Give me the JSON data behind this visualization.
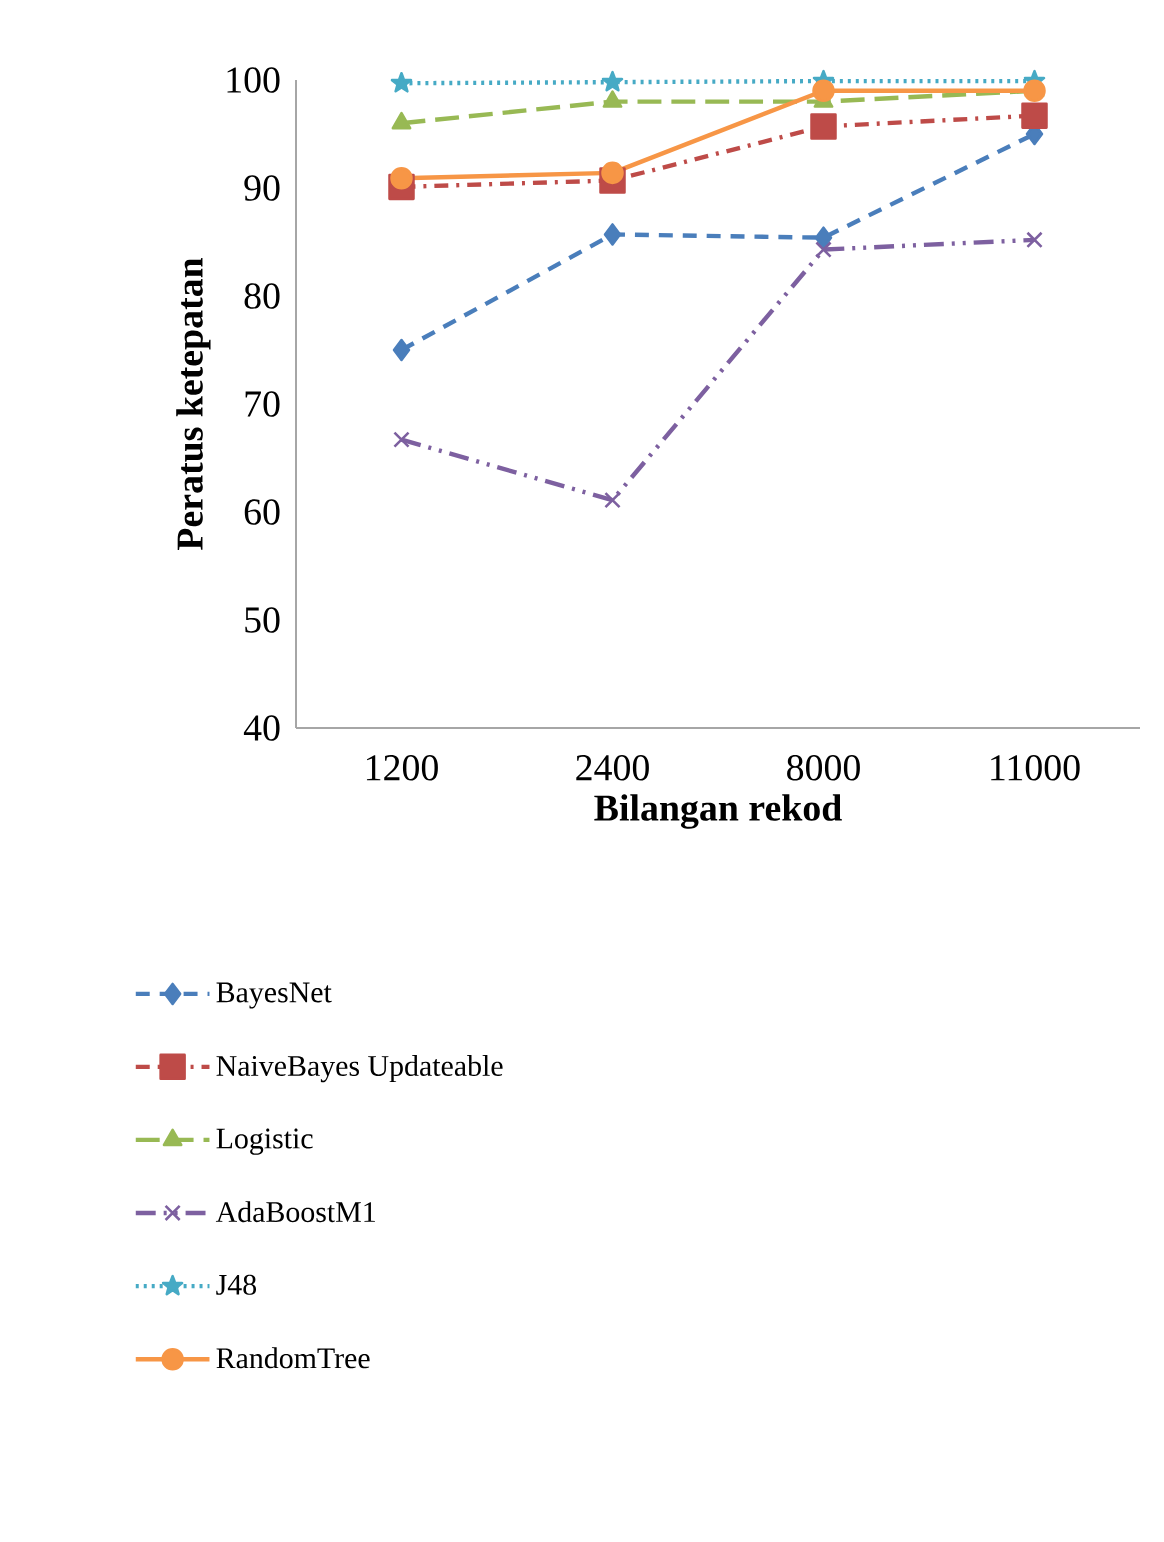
{
  "chart_data": {
    "type": "line",
    "xlabel": "Bilangan rekod",
    "ylabel": "Peratus ketepatan",
    "categories": [
      "1200",
      "2400",
      "8000",
      "11000"
    ],
    "ylim": [
      40,
      100
    ],
    "yticks": [
      40,
      50,
      60,
      70,
      80,
      90,
      100
    ],
    "legend": "bottom",
    "series": [
      {
        "name": "BayesNet",
        "color": "#4a7ebb",
        "marker": "diamond",
        "line_style": "dashed",
        "values": [
          75,
          85.7,
          85.4,
          95
        ]
      },
      {
        "name": "NaiveBayes Updateable",
        "color": "#be4b48",
        "marker": "square",
        "line_style": "dashdot",
        "values": [
          90.1,
          90.7,
          95.7,
          96.7
        ]
      },
      {
        "name": "Logistic",
        "color": "#98b954",
        "marker": "triangle",
        "line_style": "longdash",
        "values": [
          96,
          98,
          98,
          99
        ]
      },
      {
        "name": "AdaBoostM1",
        "color": "#7d60a0",
        "marker": "cross",
        "line_style": "dashdotdot",
        "values": [
          66.7,
          61.1,
          84.3,
          85.2
        ]
      },
      {
        "name": "J48",
        "color": "#46aac5",
        "marker": "star",
        "line_style": "dotted",
        "values": [
          99.7,
          99.8,
          99.9,
          99.9
        ]
      },
      {
        "name": "RandomTree",
        "color": "#f79646",
        "marker": "circle",
        "line_style": "solid",
        "values": [
          90.9,
          91.4,
          99,
          99
        ]
      }
    ]
  }
}
